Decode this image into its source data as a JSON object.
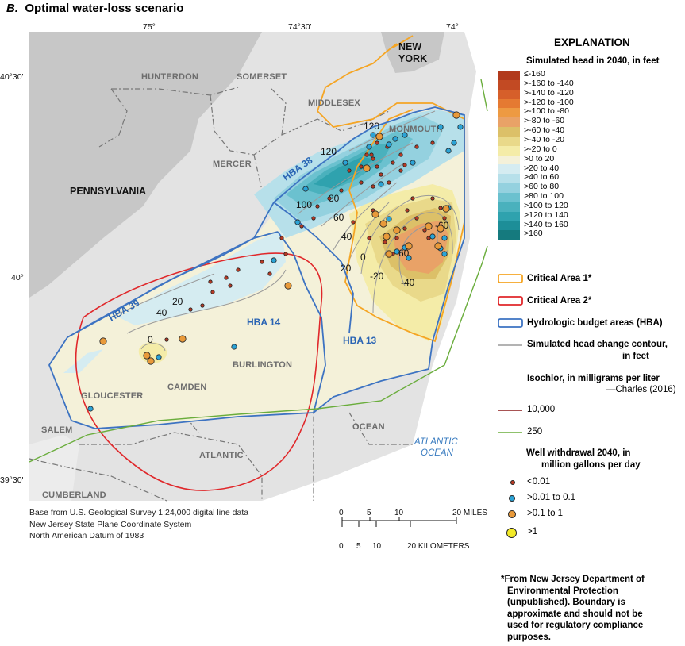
{
  "title": {
    "letter": "B.",
    "text": "Optimal water-loss scenario"
  },
  "coords": {
    "top": [
      "75°",
      "74°30'",
      "74°"
    ],
    "left": [
      "40°30'",
      "40°",
      "39°30'"
    ]
  },
  "labels": {
    "states": {
      "new": "NEW",
      "york": "YORK",
      "pennsylvania": "PENNSYLVANIA"
    },
    "counties": [
      "HUNTERDON",
      "SOMERSET",
      "MIDDLESEX",
      "MONMOUTH",
      "MERCER",
      "BURLINGTON",
      "CAMDEN",
      "GLOUCESTER",
      "SALEM",
      "ATLANTIC",
      "OCEAN",
      "CUMBERLAND"
    ],
    "hba": [
      "HBA 38",
      "HBA 39",
      "HBA 14",
      "HBA 13"
    ],
    "ocean": [
      "ATLANTIC",
      "OCEAN"
    ],
    "contours": [
      "120",
      "120",
      "100",
      "80",
      "60",
      "40",
      "20",
      "0",
      "20",
      "40",
      "0",
      "-20",
      "-40",
      "-60",
      "-60"
    ]
  },
  "credit": [
    "Base from U.S. Geological Survey 1:24,000 digital line data",
    "New Jersey State Plane Coordinate System",
    "North American Datum of 1983"
  ],
  "scale": {
    "miles": [
      "0",
      "5",
      "10",
      "20 MILES"
    ],
    "km": [
      "0",
      "5",
      "10",
      "20 KILOMETERS"
    ]
  },
  "legend": {
    "heading": "EXPLANATION",
    "head_title": "Simulated head in 2040, in feet",
    "head_classes": [
      {
        "label": "≤-160",
        "color": "#b23a1c"
      },
      {
        "label": ">-160 to -140",
        "color": "#c24a23"
      },
      {
        "label": ">-140 to -120",
        "color": "#d65f2a"
      },
      {
        "label": ">-120 to -100",
        "color": "#e57a32"
      },
      {
        "label": ">-100 to -80",
        "color": "#ed9a42"
      },
      {
        "label": ">-80 to -60",
        "color": "#e9a267"
      },
      {
        "label": ">-60 to -40",
        "color": "#dcc068"
      },
      {
        "label": ">-40 to -20",
        "color": "#e9d98a"
      },
      {
        "label": ">-20 to 0",
        "color": "#f4eca8"
      },
      {
        "label": ">0 to 20",
        "color": "#f4f1d9"
      },
      {
        "label": ">20 to 40",
        "color": "#d5ecf1"
      },
      {
        "label": ">40 to 60",
        "color": "#b7e0ea"
      },
      {
        "label": ">60 to 80",
        "color": "#94d1df"
      },
      {
        "label": ">80 to 100",
        "color": "#6bc1cf"
      },
      {
        "label": ">100 to 120",
        "color": "#4ab1bd"
      },
      {
        "label": ">120 to 140",
        "color": "#2fa2ae"
      },
      {
        "label": ">140 to 160",
        "color": "#1d8e98"
      },
      {
        "label": ">160",
        "color": "#157a7e"
      }
    ],
    "critical1": {
      "label": "Critical Area 1*",
      "color": "#f5a524"
    },
    "critical2": {
      "label": "Critical Area 2*",
      "color": "#e0282b"
    },
    "hba": {
      "label": "Hydrologic budget areas (HBA)",
      "color": "#3d73c2"
    },
    "contour": {
      "line1": "Simulated head change contour,",
      "line2": "in feet",
      "color": "#9a9a9a"
    },
    "isochlor_title": {
      "line1": "Isochlor, in milligrams per liter",
      "line2": "—Charles (2016)"
    },
    "isochlor": [
      {
        "label": "10,000",
        "color": "#8b1a1a"
      },
      {
        "label": "250",
        "color": "#6aad3c"
      }
    ],
    "wells_title": {
      "line1": "Well withdrawal 2040, in",
      "line2": "million gallons per day"
    },
    "wells": [
      {
        "label": "<0.01",
        "color": "#b83a24"
      },
      {
        "label": ">0.01 to 0.1",
        "color": "#2ba3d6"
      },
      {
        "label": ">0.1 to 1",
        "color": "#e99a3a"
      },
      {
        "label": ">1",
        "color": "#f3ea28"
      }
    ],
    "footnote": [
      "*From New Jersey Department of",
      "Environmental Protection",
      "(unpublished). Boundary is",
      "approximate and should not be",
      "used for regulatory compliance",
      "purposes."
    ]
  }
}
